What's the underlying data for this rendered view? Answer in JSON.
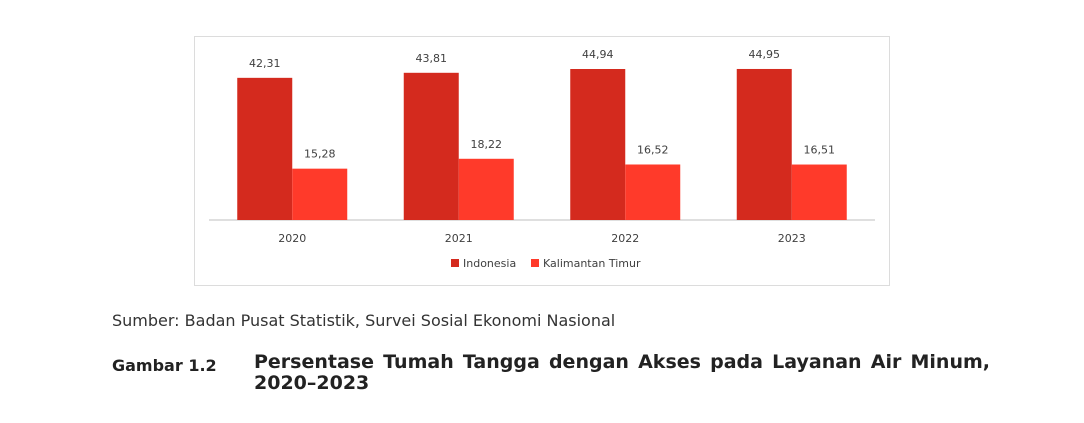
{
  "caption": {
    "source": "Sumber: Badan Pusat Statistik, Survei Sosial Ekonomi Nasional",
    "figure_number": "Gambar 1.2",
    "figure_title": "Persentase Tumah Tangga dengan Akses pada Layanan Air Minum, 2020–2023"
  },
  "chart_data": {
    "type": "bar",
    "categories": [
      "2020",
      "2021",
      "2022",
      "2023"
    ],
    "series": [
      {
        "name": "Indonesia",
        "values": [
          42.31,
          43.81,
          44.94,
          44.95
        ],
        "labels": [
          "42,31",
          "43,81",
          "44,94",
          "44,95"
        ],
        "color": "#d42a1e"
      },
      {
        "name": "Kalimantan Timur",
        "values": [
          15.28,
          18.22,
          16.52,
          16.51
        ],
        "labels": [
          "15,28",
          "18,22",
          "16,52",
          "16,51"
        ],
        "color": "#ff3a2a"
      }
    ],
    "ylim": [
      0,
      50
    ],
    "grid": false,
    "legend": "bottom-center",
    "title": "",
    "xlabel": "",
    "ylabel": ""
  }
}
